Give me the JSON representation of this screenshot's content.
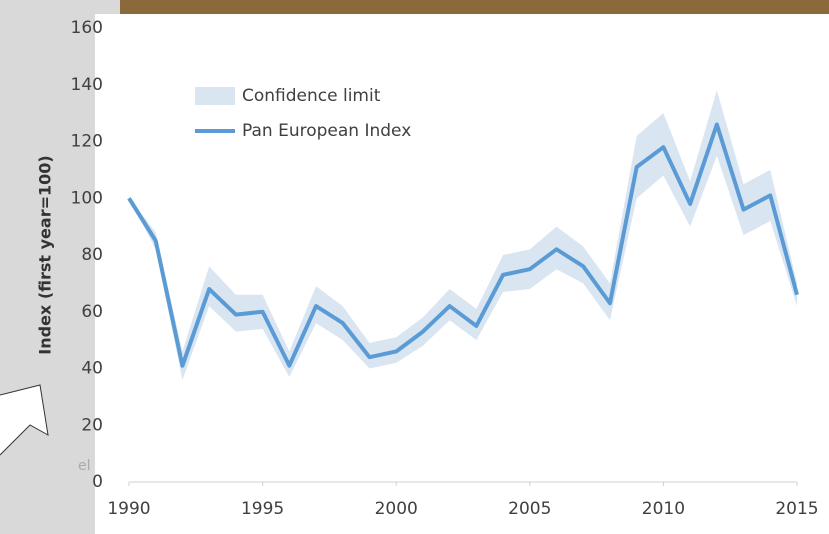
{
  "chart_data": {
    "type": "line",
    "y_label": "Index (first year=100)",
    "x": [
      1990,
      1991,
      1992,
      1993,
      1994,
      1995,
      1996,
      1997,
      1998,
      1999,
      2000,
      2001,
      2002,
      2003,
      2004,
      2005,
      2006,
      2007,
      2008,
      2009,
      2010,
      2011,
      2012,
      2013,
      2014,
      2015
    ],
    "series": [
      {
        "name": "Confidence limit",
        "color": "#dae5f2",
        "lower": [
          100,
          82,
          36,
          62,
          53,
          54,
          37,
          56,
          50,
          40,
          42,
          48,
          57,
          50,
          67,
          68,
          75,
          70,
          57,
          100,
          108,
          90,
          115,
          87,
          92,
          62
        ],
        "upper": [
          100,
          88,
          46,
          76,
          66,
          66,
          46,
          69,
          62,
          49,
          51,
          58,
          68,
          61,
          80,
          82,
          90,
          83,
          70,
          122,
          130,
          106,
          138,
          105,
          110,
          70
        ]
      },
      {
        "name": "Pan European Index",
        "color": "#5b9bd5",
        "values": [
          100,
          85,
          41,
          68,
          59,
          60,
          41,
          62,
          56,
          44,
          46,
          53,
          62,
          55,
          73,
          75,
          82,
          76,
          63,
          111,
          118,
          98,
          126,
          96,
          101,
          66
        ]
      }
    ],
    "xlim": [
      1990,
      2015
    ],
    "xticks": [
      1990,
      1995,
      2000,
      2005,
      2010,
      2015
    ],
    "ylim": [
      0,
      160
    ],
    "yticks": [
      0,
      20,
      40,
      60,
      80,
      100,
      120,
      140,
      160
    ],
    "legend": "upper-left",
    "grid": false
  },
  "sidebar_fragment": "el"
}
